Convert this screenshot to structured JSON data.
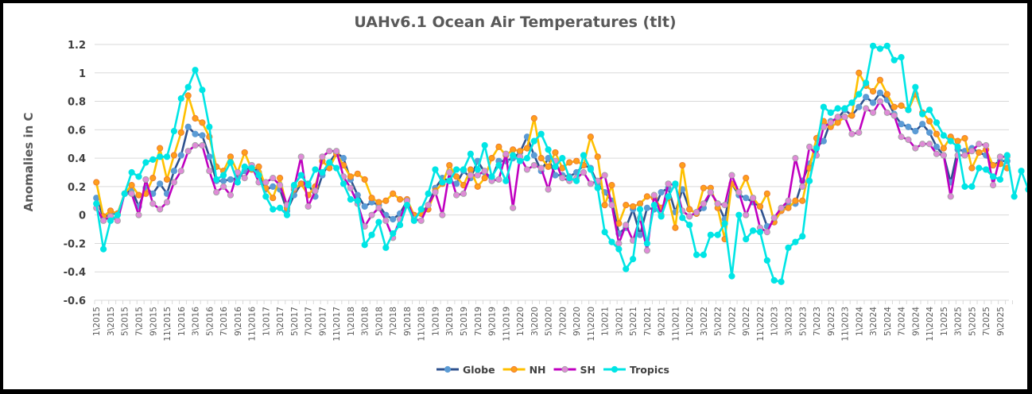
{
  "chart_data": {
    "type": "line",
    "title": "UAHv6.1 Ocean Air Temperatures (tlt)",
    "xlabel": "",
    "ylabel": "Anomalies in C",
    "ylim": [
      -0.6,
      1.2
    ],
    "yticks": [
      "1.2",
      "1",
      "0.8",
      "0.6",
      "0.4",
      "0.2",
      "0",
      "-0.2",
      "-0.4",
      "-0.6"
    ],
    "grid": true,
    "legend_position": "bottom",
    "x_start": {
      "year": 2015,
      "month": 1
    },
    "x_label_step_months": 2,
    "x_label_format": "M\\YYYY",
    "series": [
      {
        "name": "Globe",
        "color": "#2F528F",
        "marker": "#5B9BD5",
        "values": [
          0.12,
          -0.02,
          0.01,
          0.01,
          0.15,
          0.18,
          0.06,
          0.19,
          0.15,
          0.22,
          0.15,
          0.31,
          0.42,
          0.62,
          0.57,
          0.56,
          0.41,
          0.24,
          0.24,
          0.25,
          0.26,
          0.31,
          0.35,
          0.3,
          0.18,
          0.2,
          0.18,
          0.03,
          0.14,
          0.22,
          0.22,
          0.13,
          0.28,
          0.37,
          0.44,
          0.4,
          0.25,
          0.14,
          0.06,
          0.09,
          0.07,
          0.0,
          -0.03,
          0.01,
          0.1,
          -0.01,
          0.01,
          0.07,
          0.19,
          0.26,
          0.24,
          0.22,
          0.31,
          0.26,
          0.38,
          0.3,
          0.26,
          0.38,
          0.38,
          0.4,
          0.44,
          0.55,
          0.42,
          0.31,
          0.4,
          0.28,
          0.28,
          0.27,
          0.3,
          0.35,
          0.33,
          0.22,
          0.16,
          0.1,
          -0.13,
          -0.09,
          0.04,
          -0.14,
          0.05,
          0.04,
          0.16,
          0.19,
          0.02,
          0.18,
          0.04,
          0.01,
          0.05,
          0.16,
          0.08,
          -0.03,
          0.22,
          0.14,
          0.12,
          0.09,
          0.06,
          -0.08,
          -0.05,
          0.03,
          0.07,
          0.08,
          0.24,
          0.36,
          0.48,
          0.52,
          0.66,
          0.68,
          0.74,
          0.7,
          0.76,
          0.83,
          0.79,
          0.86,
          0.81,
          0.71,
          0.64,
          0.62,
          0.59,
          0.64,
          0.58,
          0.48,
          0.42,
          0.23,
          0.46,
          0.45,
          0.47,
          0.44,
          0.42,
          0.35,
          0.38,
          0.38
        ]
      },
      {
        "name": "NH",
        "color": "#FFC000",
        "marker": "#FF9F1A",
        "values": [
          0.23,
          -0.01,
          0.03,
          0.01,
          0.15,
          0.21,
          0.14,
          0.15,
          0.26,
          0.47,
          0.25,
          0.42,
          0.58,
          0.84,
          0.68,
          0.65,
          0.55,
          0.34,
          0.31,
          0.41,
          0.3,
          0.44,
          0.32,
          0.34,
          0.19,
          0.12,
          0.26,
          0.05,
          0.18,
          0.22,
          0.14,
          0.2,
          0.38,
          0.33,
          0.43,
          0.35,
          0.27,
          0.29,
          0.25,
          0.12,
          0.09,
          0.1,
          0.15,
          0.11,
          0.11,
          0.0,
          0.01,
          0.04,
          0.17,
          0.22,
          0.35,
          0.27,
          0.21,
          0.32,
          0.2,
          0.26,
          0.4,
          0.48,
          0.42,
          0.46,
          0.45,
          0.47,
          0.68,
          0.4,
          0.34,
          0.44,
          0.33,
          0.37,
          0.38,
          0.35,
          0.55,
          0.41,
          0.07,
          0.21,
          -0.06,
          0.07,
          0.06,
          0.08,
          0.13,
          0.12,
          0.05,
          0.12,
          -0.09,
          0.35,
          0.04,
          0.01,
          0.19,
          0.19,
          0.05,
          -0.17,
          0.22,
          0.16,
          0.26,
          0.12,
          0.06,
          0.15,
          -0.05,
          0.03,
          0.05,
          0.1,
          0.1,
          0.33,
          0.54,
          0.66,
          0.62,
          0.65,
          0.69,
          0.7,
          1.0,
          0.91,
          0.87,
          0.95,
          0.85,
          0.76,
          0.77,
          0.74,
          0.85,
          0.72,
          0.66,
          0.57,
          0.47,
          0.55,
          0.52,
          0.54,
          0.33,
          0.44,
          0.46,
          0.35,
          0.36,
          0.33
        ]
      },
      {
        "name": "SH",
        "color": "#C000C0",
        "marker": "#E08AD8",
        "values": [
          0.05,
          -0.04,
          -0.01,
          -0.04,
          0.15,
          0.15,
          0.0,
          0.25,
          0.08,
          0.04,
          0.09,
          0.23,
          0.31,
          0.45,
          0.49,
          0.49,
          0.31,
          0.16,
          0.2,
          0.14,
          0.3,
          0.26,
          0.35,
          0.23,
          0.23,
          0.26,
          0.21,
          0.07,
          0.19,
          0.41,
          0.06,
          0.17,
          0.41,
          0.45,
          0.45,
          0.27,
          0.19,
          0.08,
          -0.08,
          0.0,
          0.05,
          -0.04,
          -0.16,
          -0.03,
          0.1,
          -0.03,
          -0.04,
          0.07,
          0.16,
          0.0,
          0.3,
          0.14,
          0.15,
          0.28,
          0.28,
          0.31,
          0.24,
          0.25,
          0.43,
          0.05,
          0.41,
          0.32,
          0.35,
          0.33,
          0.18,
          0.38,
          0.26,
          0.24,
          0.26,
          0.3,
          0.22,
          0.24,
          0.28,
          0.07,
          -0.2,
          -0.07,
          -0.18,
          -0.02,
          -0.25,
          0.14,
          0.0,
          0.22,
          0.21,
          0.03,
          -0.01,
          0.02,
          0.08,
          0.16,
          0.08,
          0.07,
          0.28,
          0.16,
          0.0,
          0.12,
          -0.09,
          -0.12,
          -0.02,
          0.05,
          0.1,
          0.4,
          0.2,
          0.48,
          0.42,
          0.62,
          0.65,
          0.69,
          0.69,
          0.57,
          0.58,
          0.75,
          0.72,
          0.8,
          0.72,
          0.7,
          0.55,
          0.53,
          0.47,
          0.5,
          0.5,
          0.43,
          0.42,
          0.13,
          0.42,
          0.42,
          0.45,
          0.5,
          0.49,
          0.21,
          0.41,
          0.41
        ]
      },
      {
        "name": "Tropics",
        "color": "#00E5E5",
        "marker": "#00E5E5",
        "values": [
          0.08,
          -0.24,
          -0.04,
          0.0,
          0.15,
          0.3,
          0.27,
          0.37,
          0.39,
          0.41,
          0.41,
          0.59,
          0.82,
          0.9,
          1.02,
          0.88,
          0.62,
          0.25,
          0.28,
          0.37,
          0.23,
          0.34,
          0.33,
          0.28,
          0.13,
          0.04,
          0.05,
          0.0,
          0.21,
          0.28,
          0.21,
          0.32,
          0.3,
          0.37,
          0.33,
          0.22,
          0.11,
          0.1,
          -0.21,
          -0.14,
          -0.05,
          -0.23,
          -0.13,
          -0.07,
          0.07,
          -0.04,
          0.04,
          0.15,
          0.32,
          0.23,
          0.24,
          0.32,
          0.32,
          0.43,
          0.32,
          0.49,
          0.27,
          0.35,
          0.24,
          0.42,
          0.38,
          0.4,
          0.52,
          0.57,
          0.46,
          0.34,
          0.4,
          0.26,
          0.24,
          0.42,
          0.32,
          0.19,
          -0.12,
          -0.19,
          -0.24,
          -0.38,
          -0.31,
          0.04,
          -0.2,
          0.07,
          -0.01,
          0.13,
          0.22,
          -0.02,
          -0.07,
          -0.28,
          -0.28,
          -0.14,
          -0.14,
          -0.06,
          -0.43,
          0.0,
          -0.17,
          -0.11,
          -0.12,
          -0.32,
          -0.46,
          -0.47,
          -0.23,
          -0.19,
          -0.15,
          0.24,
          0.47,
          0.76,
          0.72,
          0.75,
          0.75,
          0.79,
          0.85,
          0.93,
          1.19,
          1.17,
          1.19,
          1.09,
          1.11,
          0.74,
          0.9,
          0.71,
          0.74,
          0.65,
          0.56,
          0.52,
          0.48,
          0.2,
          0.2,
          0.33,
          0.32,
          0.27,
          0.25,
          0.42,
          0.13,
          0.31,
          0.18
        ]
      }
    ]
  }
}
